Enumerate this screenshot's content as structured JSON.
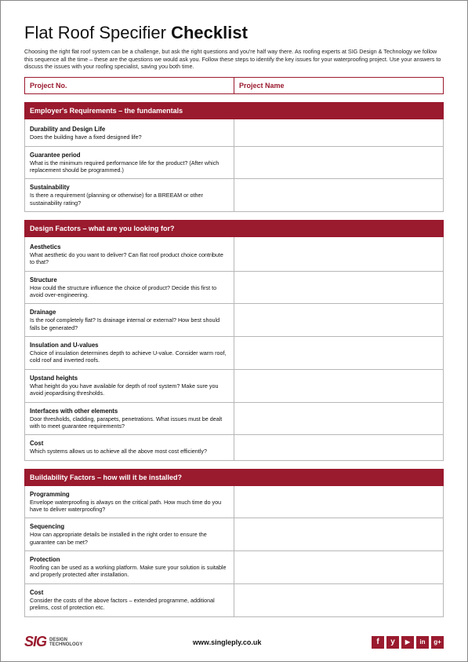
{
  "title_light": "Flat Roof Specifier ",
  "title_bold": "Checklist",
  "intro": "Choosing the right flat roof system can be a challenge, but ask the right questions and you're half way there. As roofing experts at SIG Design & Technology we follow this sequence all the time – these are the questions we would ask you. Follow these steps to identify the key issues for your waterproofing project. Use your answers to discuss the issues with your roofing specialist, saving you both time.",
  "project_no_label": "Project No.",
  "project_name_label": "Project Name",
  "sections": [
    {
      "header": "Employer's Requirements – the fundamentals",
      "rows": [
        {
          "title": "Durability and Design Life",
          "desc": "Does the building have a fixed designed life?",
          "gap": true
        },
        {
          "title": "Guarantee period",
          "desc": "What is the minimum required performance life for the product? (After which replacement should be programmed.)"
        },
        {
          "title": "Sustainability",
          "desc": "Is there a requirement (planning or otherwise) for a BREEAM or other sustainability rating?"
        }
      ]
    },
    {
      "header": "Design Factors – what are you looking for?",
      "rows": [
        {
          "title": "Aesthetics",
          "desc": "What aesthetic do you want to deliver?\nCan flat roof product choice contribute to that?",
          "gap": true
        },
        {
          "title": "Structure",
          "desc": "How could the structure influence the choice of product? Decide this first to avoid over-engineering."
        },
        {
          "title": "Drainage",
          "desc": "Is the roof completely flat? Is drainage internal or external? How best should falls be generated?"
        },
        {
          "title": "Insulation and U-values",
          "desc": "Choice of insulation determines depth to achieve U-value. Consider warm roof, cold roof and inverted roofs."
        },
        {
          "title": "Upstand heights",
          "desc": "What height do you have available for depth of roof system?\nMake sure you avoid jeopardising thresholds."
        },
        {
          "title": "Interfaces with other elements",
          "desc": "Door thresholds, cladding, parapets, penetrations. What issues must be dealt with to meet guarantee requirements?"
        },
        {
          "title": "Cost",
          "desc": "Which systems allows us to achieve all the above most cost efficiently?"
        }
      ]
    },
    {
      "header": "Buildability Factors – how will it be installed?",
      "rows": [
        {
          "title": "Programming",
          "desc": "Envelope waterproofing is always on the critical path. How much time do you have to deliver waterproofing?"
        },
        {
          "title": "Sequencing",
          "desc": "How can appropriate details be installed in the right order to ensure the guarantee can be met?"
        },
        {
          "title": "Protection",
          "desc": "Roofing can be used as a working platform. Make sure your solution is suitable and properly protected after installation."
        },
        {
          "title": "Cost",
          "desc": "Consider the costs of the above factors – extended programme, additional prelims, cost of protection etc."
        }
      ]
    }
  ],
  "logo_text": "SIG",
  "logo_sub1": "DESIGN",
  "logo_sub2": "TECHNOLOGY",
  "url": "www.singleply.co.uk",
  "socials": [
    "f",
    "y",
    "▶",
    "in",
    "g+"
  ],
  "colors": {
    "brand": "#9a1a2e",
    "border": "#b7b7b7"
  }
}
